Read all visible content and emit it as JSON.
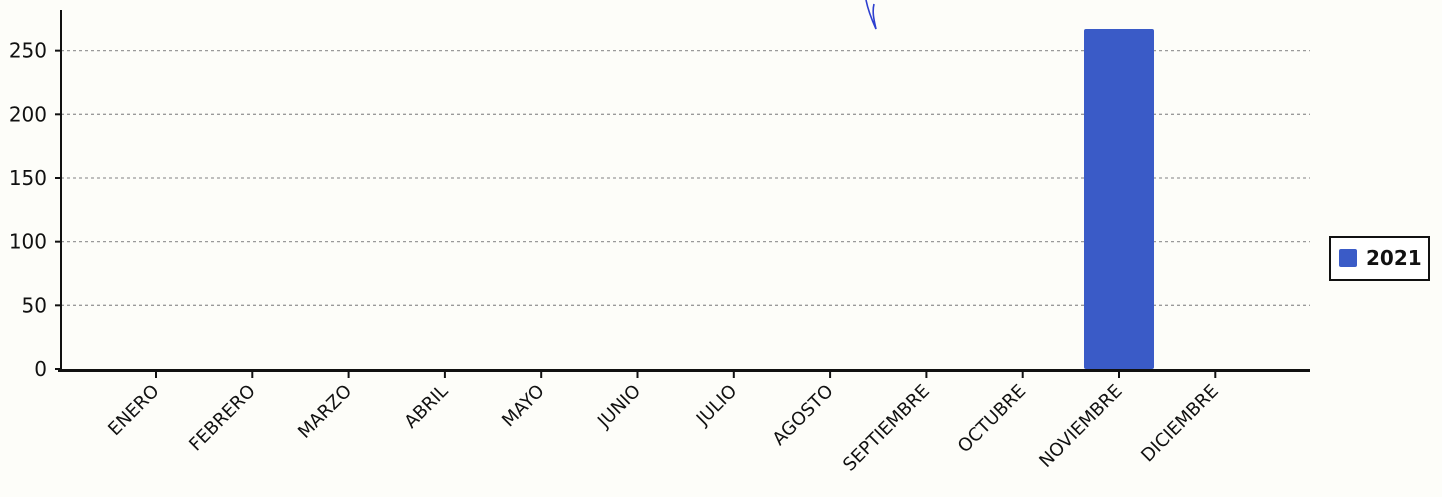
{
  "chart_data": {
    "type": "bar",
    "categories": [
      "ENERO",
      "FEBRERO",
      "MARZO",
      "ABRIL",
      "MAYO",
      "JUNIO",
      "JULIO",
      "AGOSTO",
      "SEPTIEMBRE",
      "OCTUBRE",
      "NOVIEMBRE",
      "DICIEMBRE"
    ],
    "series": [
      {
        "name": "2021",
        "values": [
          0,
          0,
          0,
          0,
          0,
          0,
          0,
          0,
          0,
          0,
          267,
          0
        ],
        "color": "#3a5bc7"
      }
    ],
    "yticks": [
      0,
      50,
      100,
      150,
      200,
      250
    ],
    "ylim": [
      0,
      285
    ],
    "grid": true,
    "legend": "right",
    "title": "",
    "xlabel": "",
    "ylabel": ""
  }
}
